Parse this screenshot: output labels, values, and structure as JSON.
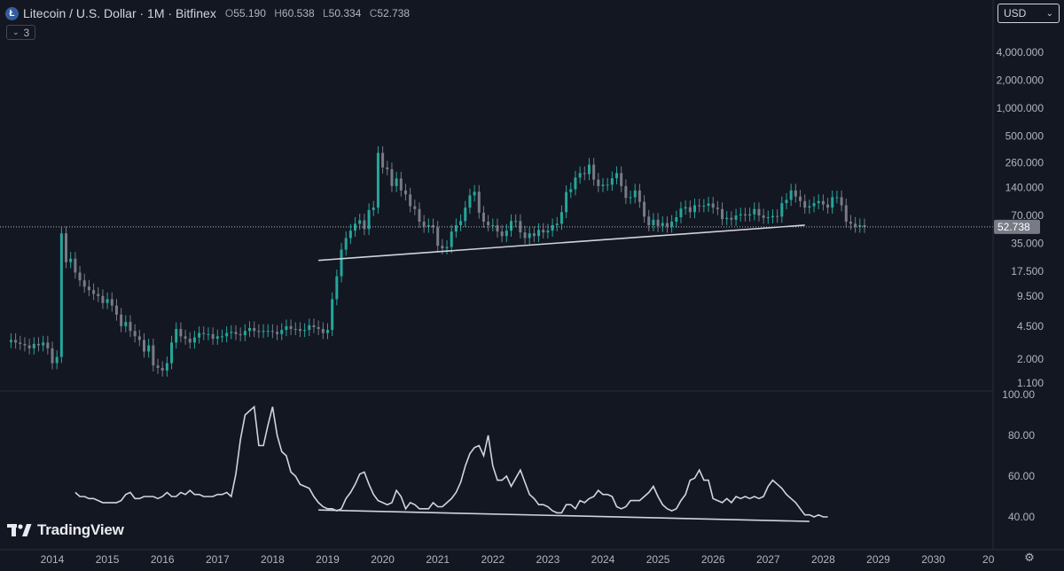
{
  "header": {
    "title": "Litecoin / U.S. Dollar · 1M · Bitfinex",
    "icon": "litecoin-icon",
    "ohlc": {
      "open_label": "O",
      "open": "55.190",
      "high_label": "H",
      "high": "60.538",
      "low_label": "L",
      "low": "50.334",
      "close_label": "C",
      "close": "52.738"
    }
  },
  "indicator_toggle": {
    "label": "3",
    "icon": "chevron-down-icon"
  },
  "currency_select": {
    "value": "USD",
    "icon": "chevron-down-icon"
  },
  "brand": {
    "name": "TradingView",
    "icon": "tradingview-logo-icon"
  },
  "colors": {
    "background": "#131722",
    "up": "#26a69a",
    "down": "#787b86",
    "line": "#d1d4dc",
    "price_label_bg": "#787b86"
  },
  "chart_data": [
    {
      "type": "candlestick",
      "title": "Litecoin / U.S. Dollar · 1M · Bitfinex",
      "y_scale": "log",
      "y_ticks": [
        "4,000.000",
        "2,000.000",
        "1,000.000",
        "500.000",
        "260.000",
        "140.000",
        "70.000",
        "35.000",
        "17.500",
        "9.500",
        "4.500",
        "2.000",
        "1.100"
      ],
      "y_tick_values": [
        4000,
        2000,
        1000,
        500,
        260,
        140,
        70,
        35,
        17.5,
        9.5,
        4.5,
        2,
        1.1
      ],
      "x_ticks": [
        "2014",
        "2015",
        "2016",
        "2017",
        "2018",
        "2019",
        "2020",
        "2021",
        "2022",
        "2023",
        "2024",
        "2025",
        "2026",
        "2027",
        "2028",
        "2029",
        "2030",
        "20"
      ],
      "last_price": "52.738",
      "last_price_value": 52.738,
      "trendline": {
        "from": [
          "2018-11",
          23
        ],
        "to": [
          "2027-09",
          55
        ]
      },
      "series_monthly_close": [
        {
          "start": "2013-04",
          "values": [
            3.2,
            3.0,
            2.9,
            2.8,
            2.6,
            2.9,
            2.8,
            3.0,
            2.6,
            1.8,
            2.1,
            45,
            22,
            24,
            17,
            14,
            12,
            11,
            10,
            9.5,
            8.0,
            8.8,
            7.5,
            6.0,
            4.5,
            5.0,
            4.0,
            3.5,
            3.2,
            2.4,
            2.8,
            1.7,
            1.6,
            1.5,
            1.8,
            3.0,
            4.2,
            3.5,
            3.3,
            3.0,
            3.4,
            3.8,
            3.7,
            3.7,
            3.3,
            3.5,
            3.5,
            3.8,
            3.9,
            3.7,
            3.6,
            4.0,
            4.3,
            4.0,
            3.9,
            4.0,
            4.0,
            3.9,
            3.7,
            4.1,
            4.5,
            4.2,
            4.2,
            4.0,
            4.1,
            4.6,
            4.4,
            4.2,
            3.8,
            4.1,
            8.8,
            15.5,
            30,
            40,
            48,
            57,
            62,
            50,
            80,
            85,
            330,
            230,
            220,
            145,
            175,
            130,
            118,
            88,
            82,
            60,
            53,
            55,
            52,
            33,
            31,
            32,
            47,
            55,
            61,
            85,
            115,
            126,
            75,
            60,
            55,
            55,
            47,
            42,
            48,
            61,
            61,
            46,
            40,
            45,
            42,
            49,
            46,
            48,
            55,
            57,
            76,
            125,
            134,
            179,
            200,
            195,
            247,
            170,
            145,
            150,
            150,
            176,
            200,
            145,
            108,
            110,
            130,
            98,
            68,
            55,
            63,
            54,
            58,
            53,
            60,
            67,
            83,
            86,
            76,
            90,
            88,
            89,
            94,
            85,
            82,
            64,
            66,
            63,
            70,
            72,
            70,
            72,
            82,
            70,
            66,
            67,
            69,
            68,
            95,
            103,
            130,
            112,
            100,
            85,
            88,
            95,
            100,
            92,
            85,
            110,
            110,
            90,
            60,
            57,
            53,
            55,
            52.738
          ]
        }
      ]
    },
    {
      "type": "line",
      "y_ticks": [
        "100.00",
        "80.00",
        "60.00",
        "40.00"
      ],
      "y_tick_values": [
        100,
        80,
        60,
        40
      ],
      "y_range": [
        30,
        100
      ],
      "trendline": {
        "from": [
          "2018-11",
          43.4
        ],
        "to": [
          "2027-10",
          37.8
        ]
      },
      "series": [
        {
          "start": "2014-06",
          "values": [
            52,
            50,
            50,
            49,
            49,
            48,
            47,
            47,
            47,
            47,
            48,
            51,
            52,
            49,
            49,
            50,
            50,
            50,
            49,
            50,
            52,
            50,
            50,
            52,
            51,
            53,
            51,
            51,
            50,
            50,
            50,
            51,
            51,
            52,
            50,
            61,
            78,
            90,
            92,
            94,
            75,
            75,
            85,
            94,
            80,
            72,
            70,
            62,
            60,
            56,
            55,
            54,
            50,
            47,
            45,
            44,
            44,
            43,
            44,
            49,
            52,
            56,
            61,
            62,
            56,
            51,
            48,
            47,
            46,
            47,
            53,
            50,
            44,
            47,
            46,
            44,
            44,
            44,
            47,
            45,
            45,
            47,
            49,
            52,
            57,
            65,
            71,
            74,
            75,
            70,
            80,
            65,
            58,
            58,
            60,
            55,
            59,
            63,
            57,
            51,
            49,
            46,
            46,
            45,
            43,
            42,
            42,
            46,
            46,
            44,
            48,
            47,
            49,
            50,
            53,
            51,
            51,
            50,
            45,
            44,
            45,
            48,
            48,
            48,
            50,
            52,
            55,
            50,
            46,
            44,
            43,
            44,
            48,
            51,
            58,
            59,
            63,
            58,
            58,
            49,
            48,
            47,
            49,
            47,
            50,
            49,
            50,
            49,
            50,
            49,
            50,
            55,
            58,
            56,
            54,
            51,
            49,
            47,
            44,
            41,
            41,
            40,
            41,
            40,
            40
          ]
        }
      ]
    }
  ]
}
